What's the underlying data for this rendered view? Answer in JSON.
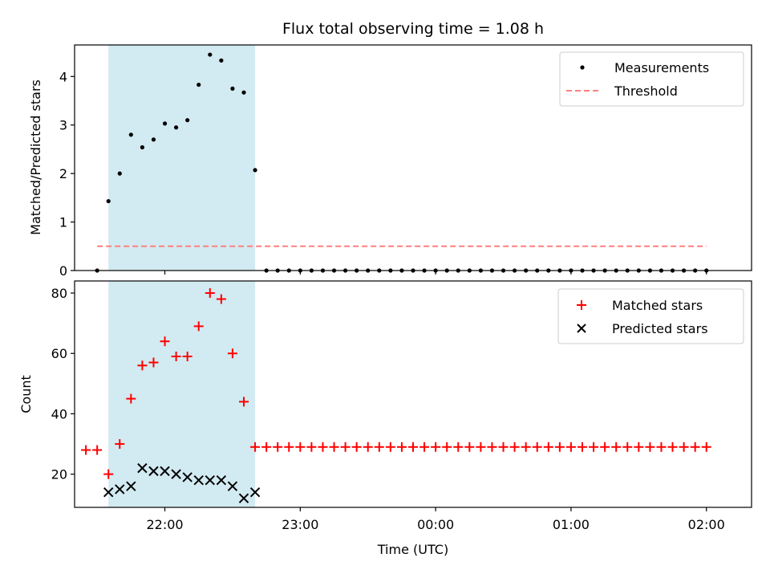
{
  "chart_data": [
    {
      "type": "scatter",
      "title": "Flux total observing time = 1.08 h",
      "xlabel": "",
      "ylabel": "Matched/Predicted stars",
      "ylim": [
        0,
        4.65
      ],
      "yticks": [
        0,
        1,
        2,
        3,
        4
      ],
      "x_ticks": [
        "22:00",
        "23:00",
        "00:00",
        "01:00",
        "02:00"
      ],
      "x_tick_labels_visible": false,
      "x_time_range": [
        "21:20",
        "02:20"
      ],
      "shaded_interval": {
        "from": "21:35",
        "to": "22:40",
        "color": "#add8e6"
      },
      "legend": {
        "placement": "top-right",
        "entries": [
          "Measurements",
          "Threshold"
        ]
      },
      "series": [
        {
          "name": "Measurements",
          "marker": "dot",
          "color": "#000000",
          "x": [
            "21:30",
            "21:35",
            "21:40",
            "21:45",
            "21:50",
            "21:55",
            "22:00",
            "22:05",
            "22:10",
            "22:15",
            "22:20",
            "22:25",
            "22:30",
            "22:35",
            "22:40",
            "22:45",
            "22:50",
            "22:55",
            "23:00",
            "23:05",
            "23:10",
            "23:15",
            "23:20",
            "23:25",
            "23:30",
            "23:35",
            "23:40",
            "23:45",
            "23:50",
            "23:55",
            "00:00",
            "00:05",
            "00:10",
            "00:15",
            "00:20",
            "00:25",
            "00:30",
            "00:35",
            "00:40",
            "00:45",
            "00:50",
            "00:55",
            "01:00",
            "01:05",
            "01:10",
            "01:15",
            "01:20",
            "01:25",
            "01:30",
            "01:35",
            "01:40",
            "01:45",
            "01:50",
            "01:55",
            "02:00"
          ],
          "values": [
            0,
            1.43,
            2.0,
            2.8,
            2.54,
            2.7,
            3.03,
            2.95,
            3.1,
            3.83,
            4.45,
            4.33,
            3.75,
            3.67,
            2.07,
            0,
            0,
            0,
            0,
            0,
            0,
            0,
            0,
            0,
            0,
            0,
            0,
            0,
            0,
            0,
            0,
            0,
            0,
            0,
            0,
            0,
            0,
            0,
            0,
            0,
            0,
            0,
            0,
            0,
            0,
            0,
            0,
            0,
            0,
            0,
            0,
            0,
            0,
            0,
            0
          ]
        },
        {
          "name": "Threshold",
          "style": "dashed",
          "color": "#ff7f7f",
          "value": 0.5
        }
      ]
    },
    {
      "type": "scatter",
      "title": "",
      "xlabel": "Time (UTC)",
      "ylabel": "Count",
      "ylim": [
        9,
        84
      ],
      "yticks": [
        20,
        40,
        60,
        80
      ],
      "x_ticks": [
        "22:00",
        "23:00",
        "00:00",
        "01:00",
        "02:00"
      ],
      "x_time_range": [
        "21:20",
        "02:20"
      ],
      "shaded_interval": {
        "from": "21:35",
        "to": "22:40",
        "color": "#add8e6"
      },
      "legend": {
        "placement": "top-right",
        "entries": [
          "Matched stars",
          "Predicted stars"
        ]
      },
      "series": [
        {
          "name": "Matched stars",
          "marker": "plus",
          "color": "#ff0000",
          "x": [
            "21:25",
            "21:30",
            "21:35",
            "21:40",
            "21:45",
            "21:50",
            "21:55",
            "22:00",
            "22:05",
            "22:10",
            "22:15",
            "22:20",
            "22:25",
            "22:30",
            "22:35",
            "22:40",
            "22:45",
            "22:50",
            "22:55",
            "23:00",
            "23:05",
            "23:10",
            "23:15",
            "23:20",
            "23:25",
            "23:30",
            "23:35",
            "23:40",
            "23:45",
            "23:50",
            "23:55",
            "00:00",
            "00:05",
            "00:10",
            "00:15",
            "00:20",
            "00:25",
            "00:30",
            "00:35",
            "00:40",
            "00:45",
            "00:50",
            "00:55",
            "01:00",
            "01:05",
            "01:10",
            "01:15",
            "01:20",
            "01:25",
            "01:30",
            "01:35",
            "01:40",
            "01:45",
            "01:50",
            "01:55",
            "02:00"
          ],
          "values": [
            28,
            28,
            20,
            30,
            45,
            56,
            57,
            64,
            59,
            59,
            69,
            80,
            78,
            60,
            44,
            29,
            29,
            29,
            29,
            29,
            29,
            29,
            29,
            29,
            29,
            29,
            29,
            29,
            29,
            29,
            29,
            29,
            29,
            29,
            29,
            29,
            29,
            29,
            29,
            29,
            29,
            29,
            29,
            29,
            29,
            29,
            29,
            29,
            29,
            29,
            29,
            29,
            29,
            29,
            29,
            29
          ]
        },
        {
          "name": "Predicted stars",
          "marker": "x",
          "color": "#000000",
          "x": [
            "21:35",
            "21:40",
            "21:45",
            "21:50",
            "21:55",
            "22:00",
            "22:05",
            "22:10",
            "22:15",
            "22:20",
            "22:25",
            "22:30",
            "22:35",
            "22:40"
          ],
          "values": [
            14,
            15,
            16,
            22,
            21,
            21,
            20,
            19,
            18,
            18,
            18,
            16,
            12,
            14
          ]
        }
      ]
    }
  ]
}
